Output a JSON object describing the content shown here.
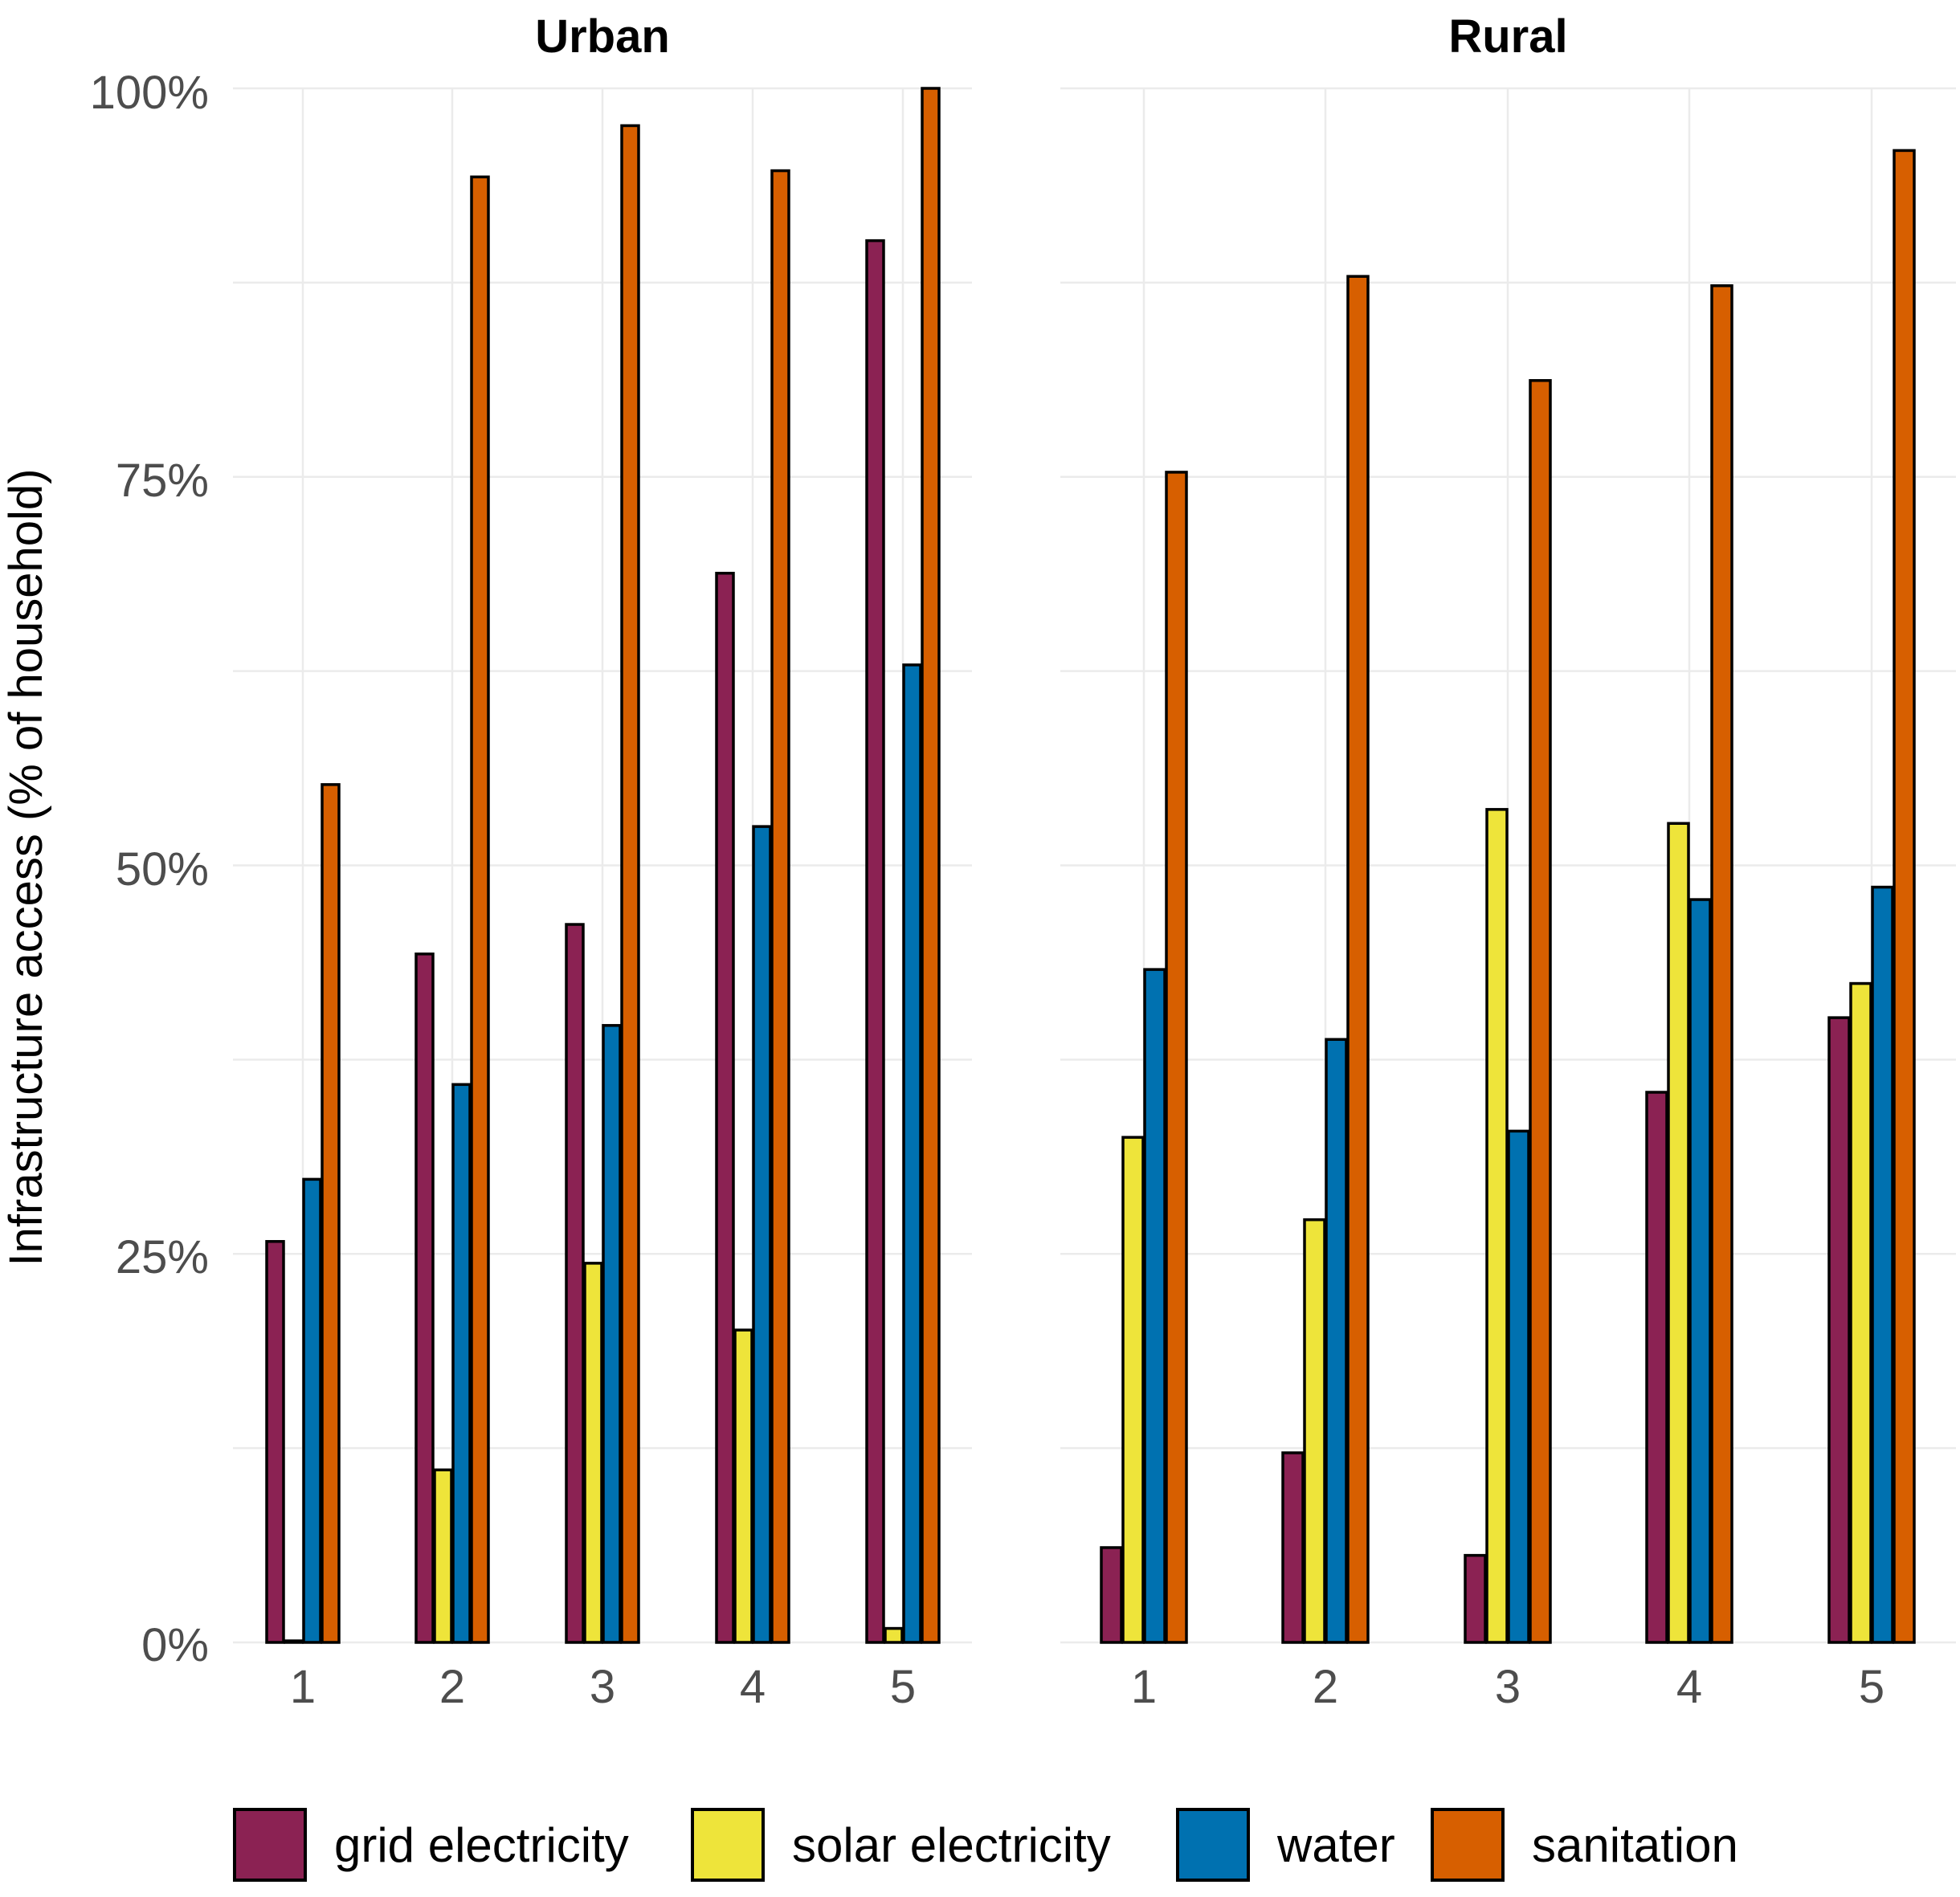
{
  "chart_data": {
    "type": "bar",
    "ylabel": "Infrastructure access (% of household)",
    "yticks": [
      "0%",
      "25%",
      "50%",
      "75%",
      "100%"
    ],
    "categories": [
      "1",
      "2",
      "3",
      "4",
      "5"
    ],
    "legend_position": "bottom",
    "series_colors": {
      "grid electricity": "#8b2253",
      "solar electricity": "#eee43a",
      "water": "#0071b0",
      "sanitation": "#d75f00"
    },
    "legend": [
      "grid electricity",
      "solar electricity",
      "water",
      "sanitation"
    ],
    "panels": [
      {
        "title": "Urban",
        "ylim": [
          0,
          100
        ],
        "series": [
          {
            "name": "grid electricity",
            "values": [
              25.8,
              44.3,
              46.2,
              68.8,
              90.2
            ]
          },
          {
            "name": "solar electricity",
            "values": [
              0.1,
              11.1,
              24.4,
              20.1,
              0.9
            ]
          },
          {
            "name": "water",
            "values": [
              29.8,
              35.9,
              39.7,
              52.5,
              62.9
            ]
          },
          {
            "name": "sanitation",
            "values": [
              55.2,
              94.3,
              97.6,
              94.7,
              100
            ]
          }
        ]
      },
      {
        "title": "Rural",
        "ylim": [
          0,
          100
        ],
        "series": [
          {
            "name": "grid electricity",
            "values": [
              6.1,
              12.2,
              5.6,
              35.4,
              40.2
            ]
          },
          {
            "name": "solar electricity",
            "values": [
              32.5,
              27.2,
              53.6,
              52.7,
              42.4
            ]
          },
          {
            "name": "water",
            "values": [
              43.3,
              38.8,
              32.9,
              47.8,
              48.6
            ]
          },
          {
            "name": "sanitation",
            "values": [
              75.3,
              87.9,
              81.2,
              87.3,
              96
            ]
          }
        ]
      }
    ]
  }
}
